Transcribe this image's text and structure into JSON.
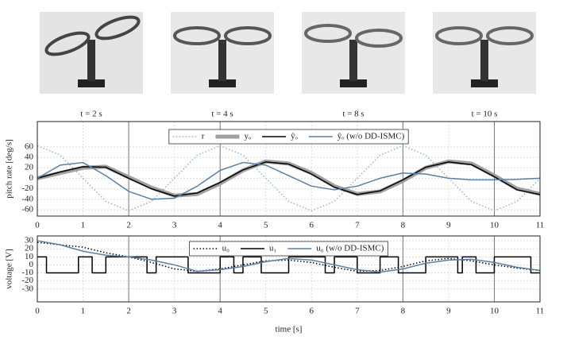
{
  "photos": [
    {
      "caption": "t = 2 s"
    },
    {
      "caption": "t = 4 s"
    },
    {
      "caption": "t = 8 s"
    },
    {
      "caption": "t = 10 s"
    }
  ],
  "chart_data": [
    {
      "type": "line",
      "ylabel": "pitch rate [deg/s]",
      "xlim": [
        0,
        11
      ],
      "xticks": [
        0,
        1,
        2,
        3,
        4,
        5,
        6,
        7,
        8,
        9,
        10,
        11
      ],
      "ylim": [
        -72,
        108
      ],
      "yticks": [
        -60,
        -40,
        -20,
        0,
        20,
        40,
        60
      ],
      "grid": true,
      "vlines": [
        2,
        4,
        8,
        10
      ],
      "x": [
        0,
        0.5,
        1,
        1.5,
        2,
        2.5,
        3,
        3.5,
        4,
        4.5,
        5,
        5.5,
        6,
        6.5,
        7,
        7.5,
        8,
        8.5,
        9,
        9.5,
        10,
        10.5,
        11
      ],
      "series": [
        {
          "name": "r",
          "color": "#8fb3d9",
          "style": "dotted",
          "values": [
            62,
            44,
            0,
            -44,
            -62,
            -44,
            0,
            44,
            62,
            44,
            0,
            -44,
            -62,
            -44,
            0,
            44,
            62,
            44,
            0,
            -44,
            -62,
            -44,
            0
          ]
        },
        {
          "name": "yₒ",
          "color": "#a0a0a0",
          "style": "thick",
          "values": [
            0,
            10,
            20,
            22,
            2,
            -18,
            -33,
            -30,
            -10,
            15,
            32,
            28,
            10,
            -15,
            -30,
            -25,
            -5,
            20,
            32,
            28,
            5,
            -20,
            -30
          ]
        },
        {
          "name": "ŷₒ",
          "color": "#000000",
          "style": "solid",
          "values": [
            0,
            12,
            22,
            21,
            0,
            -20,
            -34,
            -28,
            -8,
            16,
            31,
            27,
            8,
            -17,
            -31,
            -24,
            -3,
            21,
            31,
            26,
            3,
            -22,
            -31
          ]
        },
        {
          "name": "ŷₒ (w/o DD-ISMC)",
          "color": "#5a7fa3",
          "style": "solid",
          "values": [
            0,
            25,
            30,
            5,
            -25,
            -40,
            -38,
            -15,
            15,
            30,
            25,
            5,
            -15,
            -22,
            -15,
            0,
            10,
            8,
            0,
            -3,
            -3,
            -2,
            0
          ]
        }
      ]
    },
    {
      "type": "line",
      "ylabel": "voltage [V]",
      "xlabel": "time [s]",
      "xlim": [
        0,
        11
      ],
      "xticks": [
        0,
        1,
        2,
        3,
        4,
        5,
        6,
        7,
        8,
        9,
        10,
        11
      ],
      "ylim": [
        -46,
        36
      ],
      "yticks": [
        -30,
        -20,
        -10,
        0,
        10,
        20,
        30
      ],
      "grid": true,
      "vlines": [
        2,
        4,
        8,
        10
      ],
      "x": [
        0,
        0.5,
        1,
        1.5,
        2,
        2.5,
        3,
        3.5,
        4,
        4.5,
        5,
        5.5,
        6,
        6.5,
        7,
        7.5,
        8,
        8.5,
        9,
        9.5,
        10,
        10.5,
        11
      ],
      "series": [
        {
          "name": "u₀",
          "color": "#000000",
          "style": "dotted",
          "values": [
            28,
            25,
            22,
            15,
            10,
            3,
            -5,
            -8,
            -5,
            0,
            5,
            6,
            3,
            -3,
            -8,
            -7,
            -2,
            5,
            8,
            5,
            0,
            -4,
            -7
          ]
        },
        {
          "name": "u₁",
          "color": "#000000",
          "style": "solid",
          "step": true,
          "x": [
            0,
            0.2,
            0.9,
            1.2,
            1.5,
            2.4,
            2.6,
            3.3,
            4.0,
            4.3,
            4.5,
            4.9,
            5.5,
            6.3,
            6.5,
            7.0,
            7.5,
            7.9,
            8.5,
            9.2,
            9.3,
            9.6,
            10.0,
            10.8,
            11
          ],
          "values": [
            10,
            -10,
            10,
            -10,
            10,
            -10,
            10,
            -10,
            10,
            -10,
            10,
            -10,
            10,
            -10,
            10,
            -10,
            10,
            -10,
            10,
            -10,
            10,
            -10,
            10,
            -10,
            -10
          ]
        },
        {
          "name": "u₀ (w/o DD-ISMC)",
          "color": "#5a7fa3",
          "style": "solid",
          "values": [
            30,
            25,
            17,
            12,
            10,
            6,
            0,
            -8,
            -6,
            -2,
            4,
            8,
            6,
            0,
            -6,
            -9,
            -5,
            2,
            6,
            7,
            3,
            -3,
            -7
          ]
        }
      ]
    }
  ]
}
